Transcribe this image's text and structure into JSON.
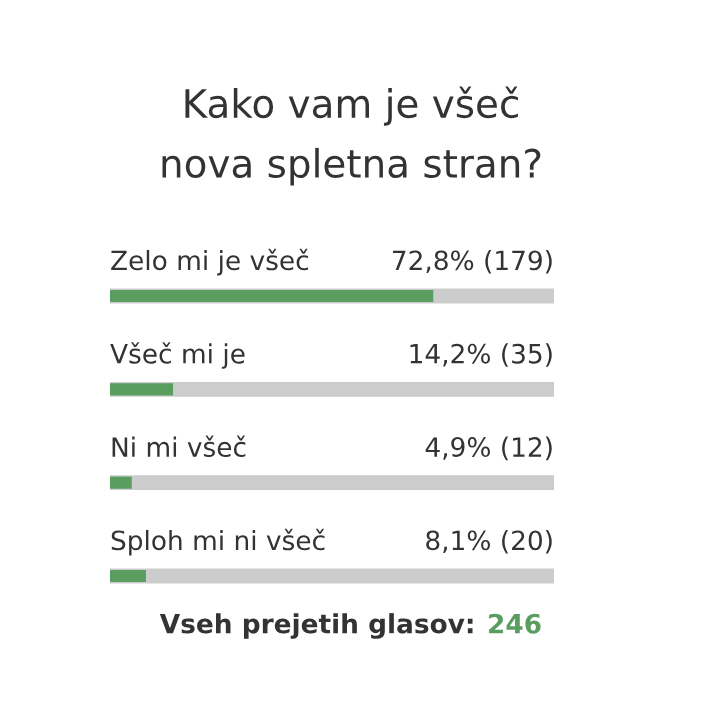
{
  "chart_data": {
    "type": "bar",
    "orientation": "horizontal",
    "title": "Kako vam je všeč\nnova spletna stran?",
    "categories": [
      "Zelo mi je všeč",
      "Všeč mi je",
      "Ni mi všeč",
      "Sploh mi ni všeč"
    ],
    "values": [
      72.8,
      14.2,
      4.9,
      8.1
    ],
    "value_labels": [
      "72,8% (179)",
      "14,2% (35)",
      "4,9% (12)",
      "8,1% (20)"
    ],
    "color": "#5a9e5f",
    "annotations": [
      "Vseh prejetih glasov: 246"
    ]
  }
}
